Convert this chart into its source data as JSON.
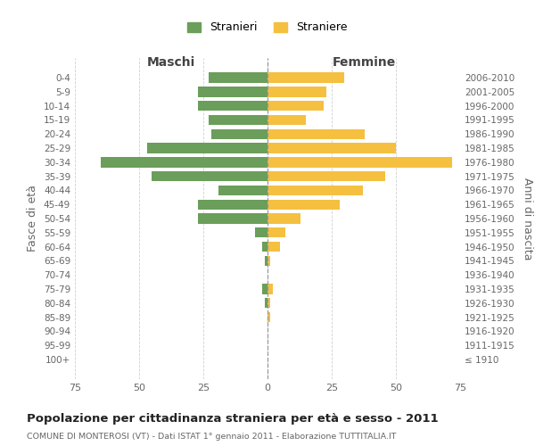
{
  "age_groups": [
    "100+",
    "95-99",
    "90-94",
    "85-89",
    "80-84",
    "75-79",
    "70-74",
    "65-69",
    "60-64",
    "55-59",
    "50-54",
    "45-49",
    "40-44",
    "35-39",
    "30-34",
    "25-29",
    "20-24",
    "15-19",
    "10-14",
    "5-9",
    "0-4"
  ],
  "birth_years": [
    "≤ 1910",
    "1911-1915",
    "1916-1920",
    "1921-1925",
    "1926-1930",
    "1931-1935",
    "1936-1940",
    "1941-1945",
    "1946-1950",
    "1951-1955",
    "1956-1960",
    "1961-1965",
    "1966-1970",
    "1971-1975",
    "1976-1980",
    "1981-1985",
    "1986-1990",
    "1991-1995",
    "1996-2000",
    "2001-2005",
    "2006-2010"
  ],
  "maschi": [
    0,
    0,
    0,
    0,
    1,
    2,
    0,
    1,
    2,
    5,
    27,
    27,
    19,
    45,
    65,
    47,
    22,
    23,
    27,
    27,
    23
  ],
  "femmine": [
    0,
    0,
    0,
    1,
    1,
    2,
    0,
    1,
    5,
    7,
    13,
    28,
    37,
    46,
    72,
    50,
    38,
    15,
    22,
    23,
    30
  ],
  "maschi_color": "#6a9e5a",
  "femmine_color": "#f5bf40",
  "grid_color": "#cccccc",
  "title": "Popolazione per cittadinanza straniera per età e sesso - 2011",
  "subtitle": "COMUNE DI MONTEROSI (VT) - Dati ISTAT 1° gennaio 2011 - Elaborazione TUTTITALIA.IT",
  "ylabel_left": "Fasce di età",
  "ylabel_right": "Anni di nascita",
  "header_left": "Maschi",
  "header_right": "Femmine",
  "legend_maschi": "Stranieri",
  "legend_femmine": "Straniere",
  "xlim": 75
}
